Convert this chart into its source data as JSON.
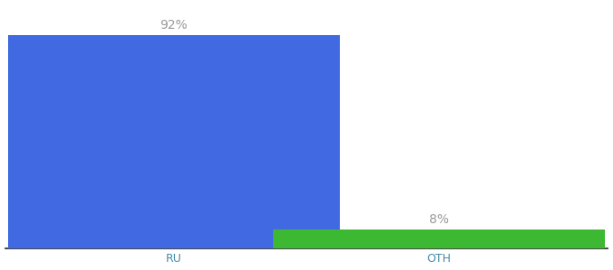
{
  "categories": [
    "RU",
    "OTH"
  ],
  "values": [
    92,
    8
  ],
  "bar_colors": [
    "#4169e1",
    "#3cb832"
  ],
  "label_texts": [
    "92%",
    "8%"
  ],
  "ylim": [
    0,
    105
  ],
  "background_color": "#ffffff",
  "label_color": "#999999",
  "label_fontsize": 10,
  "tick_fontsize": 9,
  "bar_width": 0.55,
  "x_positions": [
    0.28,
    0.72
  ],
  "xlim": [
    0.0,
    1.0
  ]
}
